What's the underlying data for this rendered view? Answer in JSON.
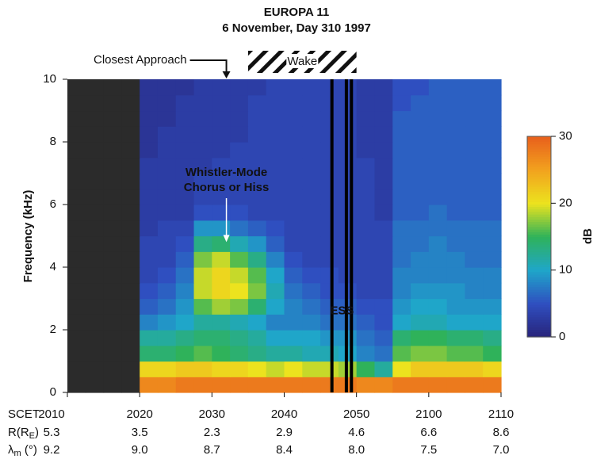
{
  "chart_data": {
    "type": "spectrogram",
    "title": "EUROPA 11",
    "subtitle": "6 November, Day 310 1997",
    "y_label": "Frequency (kHz)",
    "ylim": [
      0,
      10
    ],
    "yticks": [
      0,
      2,
      4,
      6,
      8,
      10
    ],
    "xlim": [
      10,
      70
    ],
    "x_label": "SCET",
    "xticks": [
      {
        "value": 10,
        "label": "2010"
      },
      {
        "value": 20,
        "label": "2020"
      },
      {
        "value": 30,
        "label": "2030"
      },
      {
        "value": 40,
        "label": "2040"
      },
      {
        "value": 50,
        "label": "2050"
      },
      {
        "value": 60,
        "label": "2100"
      },
      {
        "value": 70,
        "label": "2110"
      }
    ],
    "tick_rows": [
      {
        "label": "R(R",
        "label_sub": "E",
        "label_end": ")",
        "values": [
          5.3,
          3.5,
          2.3,
          2.9,
          4.6,
          6.6,
          8.6
        ]
      },
      {
        "label": "λ",
        "label_sub": "m",
        "label_end": " (°)",
        "values": [
          9.2,
          {
            "value": 9,
            "label": "9.0"
          },
          8.7,
          8.4,
          {
            "value": 8,
            "label": "8.0"
          },
          7.5,
          {
            "value": 7,
            "label": "7.0"
          }
        ]
      }
    ],
    "colorbar_label": "dB",
    "zlim": [
      0,
      30
    ],
    "zticks": [
      0,
      10,
      20,
      30
    ],
    "colormap": [
      "#28237a",
      "#2f4fc0",
      "#1fa6c9",
      "#2fb25a",
      "#ece31e",
      "#f2a21e",
      "#e8601c"
    ],
    "gap_color": "#2b2b2b",
    "xbins": [
      10,
      12.5,
      15,
      17.5,
      20,
      22.5,
      25,
      27.5,
      30,
      32.5,
      35,
      37.5,
      40,
      42.5,
      45,
      47.5,
      50,
      52.5,
      55,
      57.5,
      60,
      62.5,
      65,
      67.5,
      70
    ],
    "ybins": [
      0,
      0.5,
      1,
      1.5,
      2,
      2.5,
      3,
      3.5,
      4,
      4.5,
      5,
      5.5,
      6,
      6.5,
      7,
      7.5,
      8,
      8.5,
      9,
      9.5,
      10
    ],
    "z": [
      [
        null,
        null,
        null,
        null,
        27,
        27,
        28,
        28,
        28,
        28,
        28,
        28,
        28,
        28,
        28,
        28,
        27,
        27,
        28,
        28,
        28,
        28,
        28,
        28
      ],
      [
        null,
        null,
        null,
        null,
        21,
        21,
        22,
        22,
        21,
        21,
        20,
        19,
        20,
        19,
        19,
        18,
        15,
        12,
        20,
        22,
        22,
        22,
        22,
        21
      ],
      [
        null,
        null,
        null,
        null,
        14,
        14,
        15,
        16,
        15,
        14,
        13,
        12,
        12,
        11,
        11,
        10,
        8,
        7,
        16,
        17,
        17,
        16,
        16,
        15
      ],
      [
        null,
        null,
        null,
        null,
        12,
        12,
        13,
        14,
        14,
        13,
        12,
        10,
        10,
        10,
        9,
        9,
        7,
        6,
        14,
        15,
        15,
        14,
        14,
        13
      ],
      [
        null,
        null,
        null,
        null,
        8,
        9,
        10,
        12,
        12,
        11,
        10,
        8,
        8,
        8,
        7,
        7,
        6,
        5,
        10,
        11,
        11,
        10,
        10,
        10
      ],
      [
        null,
        null,
        null,
        null,
        6,
        7,
        9,
        16,
        18,
        17,
        14,
        10,
        8,
        7,
        6,
        6,
        5,
        5,
        9,
        10,
        10,
        9,
        9,
        9
      ],
      [
        null,
        null,
        null,
        null,
        5,
        6,
        8,
        19,
        21,
        20,
        17,
        11,
        7,
        6,
        5,
        5,
        4,
        4,
        8,
        9,
        9,
        9,
        8,
        8
      ],
      [
        null,
        null,
        null,
        null,
        4,
        5,
        7,
        19,
        21,
        19,
        16,
        10,
        6,
        5,
        5,
        4,
        4,
        4,
        8,
        8,
        8,
        8,
        8,
        8
      ],
      [
        null,
        null,
        null,
        null,
        4,
        4,
        6,
        17,
        19,
        16,
        13,
        8,
        5,
        4,
        4,
        4,
        4,
        4,
        7,
        8,
        8,
        8,
        7,
        7
      ],
      [
        null,
        null,
        null,
        null,
        4,
        4,
        5,
        13,
        14,
        11,
        9,
        6,
        4,
        4,
        4,
        4,
        4,
        4,
        7,
        7,
        8,
        7,
        7,
        7
      ],
      [
        null,
        null,
        null,
        null,
        3,
        4,
        4,
        9,
        9,
        7,
        6,
        5,
        4,
        4,
        4,
        4,
        4,
        4,
        7,
        7,
        7,
        7,
        7,
        7
      ],
      [
        null,
        null,
        null,
        null,
        3,
        3,
        3,
        5,
        5,
        5,
        4,
        4,
        4,
        4,
        4,
        4,
        4,
        3,
        6,
        6,
        7,
        6,
        6,
        6
      ],
      [
        null,
        null,
        null,
        null,
        3,
        3,
        3,
        4,
        4,
        4,
        4,
        4,
        4,
        4,
        4,
        4,
        4,
        3,
        6,
        6,
        6,
        6,
        6,
        6
      ],
      [
        null,
        null,
        null,
        null,
        3,
        3,
        3,
        4,
        4,
        4,
        4,
        4,
        4,
        4,
        4,
        4,
        4,
        3,
        6,
        6,
        6,
        6,
        6,
        6
      ],
      [
        null,
        null,
        null,
        null,
        3,
        3,
        3,
        3,
        4,
        4,
        4,
        4,
        4,
        4,
        4,
        4,
        4,
        3,
        6,
        6,
        6,
        6,
        6,
        6
      ],
      [
        null,
        null,
        null,
        null,
        2,
        3,
        3,
        3,
        3,
        4,
        4,
        4,
        4,
        4,
        4,
        4,
        3,
        3,
        6,
        6,
        6,
        6,
        6,
        6
      ],
      [
        null,
        null,
        null,
        null,
        2,
        3,
        3,
        3,
        3,
        3,
        4,
        4,
        4,
        4,
        4,
        4,
        3,
        3,
        6,
        6,
        6,
        6,
        6,
        6
      ],
      [
        null,
        null,
        null,
        null,
        2,
        2,
        3,
        3,
        3,
        3,
        4,
        4,
        4,
        4,
        4,
        4,
        3,
        3,
        6,
        6,
        6,
        6,
        6,
        6
      ],
      [
        null,
        null,
        null,
        null,
        2,
        2,
        3,
        3,
        3,
        3,
        4,
        4,
        4,
        4,
        4,
        4,
        3,
        3,
        5,
        6,
        6,
        6,
        6,
        6
      ],
      [
        null,
        null,
        null,
        null,
        2,
        2,
        2,
        3,
        3,
        3,
        3,
        4,
        4,
        4,
        4,
        4,
        3,
        3,
        5,
        5,
        6,
        6,
        6,
        6
      ]
    ],
    "dropouts": [
      46.6,
      48.6,
      49.3
    ],
    "annotations": {
      "closest_approach": {
        "text": "Closest Approach",
        "x": 32
      },
      "wake": {
        "text": "Wake",
        "x0": 35,
        "x1": 50
      },
      "whistler": {
        "lines": [
          "Whistler-Mode",
          "Chorus or Hiss"
        ],
        "x": 32,
        "y": 4.8
      },
      "ess": {
        "text": "ESS",
        "x": 48,
        "y": 2.6
      }
    }
  }
}
